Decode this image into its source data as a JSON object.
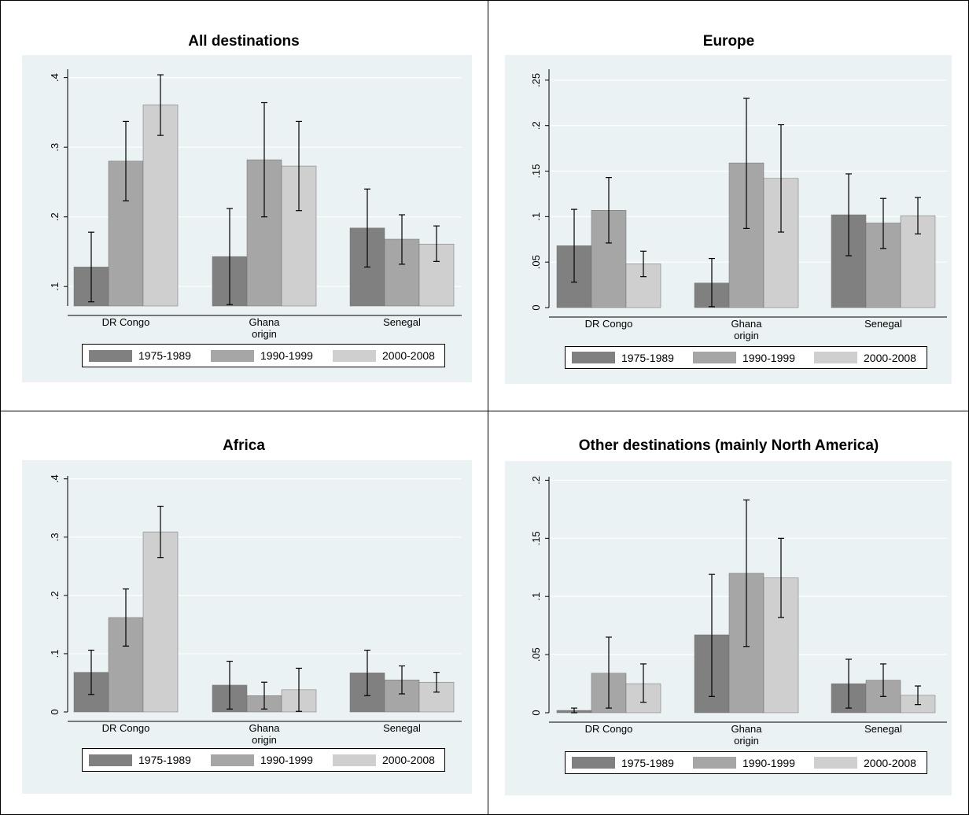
{
  "chart_data": [
    {
      "type": "bar",
      "title": "All destinations",
      "xlabel": "origin",
      "ylabel": "",
      "categories": [
        "DR Congo",
        "Ghana",
        "Senegal"
      ],
      "ylim": [
        0.072,
        0.412
      ],
      "yticks": [
        0.1,
        0.2,
        0.3,
        0.4
      ],
      "ytick_labels": [
        ".1",
        ".2",
        ".3",
        ".4"
      ],
      "grid": true,
      "legend_position": "bottom",
      "series": [
        {
          "name": "1975-1989",
          "color": "#808080",
          "values": [
            0.128,
            0.143,
            0.184
          ],
          "ci_low": [
            0.078,
            0.074,
            0.128
          ],
          "ci_high": [
            0.178,
            0.212,
            0.24
          ]
        },
        {
          "name": "1990-1999",
          "color": "#a6a6a6",
          "values": [
            0.28,
            0.282,
            0.168
          ],
          "ci_low": [
            0.223,
            0.2,
            0.132
          ],
          "ci_high": [
            0.337,
            0.364,
            0.203
          ]
        },
        {
          "name": "2000-2008",
          "color": "#cfcfcf",
          "values": [
            0.361,
            0.273,
            0.161
          ],
          "ci_low": [
            0.317,
            0.209,
            0.136
          ],
          "ci_high": [
            0.404,
            0.337,
            0.187
          ]
        }
      ]
    },
    {
      "type": "bar",
      "title": "Europe",
      "xlabel": "origin",
      "ylabel": "",
      "categories": [
        "DR Congo",
        "Ghana",
        "Senegal"
      ],
      "ylim": [
        0,
        0.262
      ],
      "yticks": [
        0,
        0.05,
        0.1,
        0.15,
        0.2,
        0.25
      ],
      "ytick_labels": [
        "0",
        ".05",
        ".1",
        ".15",
        ".2",
        ".25"
      ],
      "grid": true,
      "legend_position": "bottom",
      "series": [
        {
          "name": "1975-1989",
          "color": "#808080",
          "values": [
            0.068,
            0.027,
            0.102
          ],
          "ci_low": [
            0.028,
            0.001,
            0.057
          ],
          "ci_high": [
            0.108,
            0.054,
            0.147
          ]
        },
        {
          "name": "1990-1999",
          "color": "#a6a6a6",
          "values": [
            0.107,
            0.159,
            0.093
          ],
          "ci_low": [
            0.071,
            0.087,
            0.065
          ],
          "ci_high": [
            0.143,
            0.23,
            0.12
          ]
        },
        {
          "name": "2000-2008",
          "color": "#cfcfcf",
          "values": [
            0.048,
            0.142,
            0.101
          ],
          "ci_low": [
            0.034,
            0.083,
            0.081
          ],
          "ci_high": [
            0.062,
            0.201,
            0.121
          ]
        }
      ]
    },
    {
      "type": "bar",
      "title": "Africa",
      "xlabel": "origin",
      "ylabel": "",
      "categories": [
        "DR Congo",
        "Ghana",
        "Senegal"
      ],
      "ylim": [
        0,
        0.405
      ],
      "yticks": [
        0,
        0.1,
        0.2,
        0.3,
        0.4
      ],
      "ytick_labels": [
        "0",
        ".1",
        ".2",
        ".3",
        ".4"
      ],
      "grid": true,
      "legend_position": "bottom",
      "series": [
        {
          "name": "1975-1989",
          "color": "#808080",
          "values": [
            0.068,
            0.046,
            0.067
          ],
          "ci_low": [
            0.03,
            0.005,
            0.028
          ],
          "ci_high": [
            0.106,
            0.087,
            0.106
          ]
        },
        {
          "name": "1990-1999",
          "color": "#a6a6a6",
          "values": [
            0.162,
            0.028,
            0.055
          ],
          "ci_low": [
            0.113,
            0.005,
            0.031
          ],
          "ci_high": [
            0.211,
            0.051,
            0.079
          ]
        },
        {
          "name": "2000-2008",
          "color": "#cfcfcf",
          "values": [
            0.309,
            0.038,
            0.051
          ],
          "ci_low": [
            0.265,
            0.001,
            0.034
          ],
          "ci_high": [
            0.353,
            0.075,
            0.068
          ]
        }
      ]
    },
    {
      "type": "bar",
      "title": "Other destinations (mainly North America)",
      "xlabel": "origin",
      "ylabel": "",
      "categories": [
        "DR Congo",
        "Ghana",
        "Senegal"
      ],
      "ylim": [
        0,
        0.203
      ],
      "yticks": [
        0,
        0.05,
        0.1,
        0.15,
        0.2
      ],
      "ytick_labels": [
        "0",
        ".05",
        ".1",
        ".15",
        ".2"
      ],
      "grid": true,
      "legend_position": "bottom",
      "series": [
        {
          "name": "1975-1989",
          "color": "#808080",
          "values": [
            0.002,
            0.067,
            0.025
          ],
          "ci_low": [
            0.0,
            0.014,
            0.004
          ],
          "ci_high": [
            0.004,
            0.119,
            0.046
          ]
        },
        {
          "name": "1990-1999",
          "color": "#a6a6a6",
          "values": [
            0.034,
            0.12,
            0.028
          ],
          "ci_low": [
            0.004,
            0.057,
            0.014
          ],
          "ci_high": [
            0.065,
            0.183,
            0.042
          ]
        },
        {
          "name": "2000-2008",
          "color": "#cfcfcf",
          "values": [
            0.025,
            0.116,
            0.015
          ],
          "ci_low": [
            0.009,
            0.082,
            0.007
          ],
          "ci_high": [
            0.042,
            0.15,
            0.023
          ]
        }
      ]
    }
  ]
}
